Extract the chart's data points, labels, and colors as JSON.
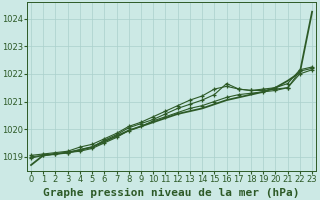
{
  "title": "Graphe pression niveau de la mer (hPa)",
  "xlabel_hours": [
    0,
    1,
    2,
    3,
    4,
    5,
    6,
    7,
    8,
    9,
    10,
    11,
    12,
    13,
    14,
    15,
    16,
    17,
    18,
    19,
    20,
    21,
    22,
    23
  ],
  "ylim": [
    1018.5,
    1024.6
  ],
  "yticks": [
    1019,
    1020,
    1021,
    1022,
    1023,
    1024
  ],
  "background_color": "#cce9e5",
  "grid_color": "#aad0cc",
  "line_color": "#2d5a27",
  "series_smooth": [
    1018.7,
    1019.05,
    1019.1,
    1019.15,
    1019.25,
    1019.35,
    1019.55,
    1019.75,
    1019.95,
    1020.1,
    1020.25,
    1020.4,
    1020.55,
    1020.65,
    1020.75,
    1020.9,
    1021.05,
    1021.15,
    1021.25,
    1021.35,
    1021.5,
    1021.75,
    1022.05,
    1024.25
  ],
  "series2": [
    1019.05,
    1019.1,
    1019.15,
    1019.2,
    1019.35,
    1019.45,
    1019.65,
    1019.85,
    1020.1,
    1020.25,
    1020.45,
    1020.65,
    1020.85,
    1021.05,
    1021.2,
    1021.45,
    1021.55,
    1021.45,
    1021.4,
    1021.45,
    1021.5,
    1021.65,
    1022.15,
    1022.25
  ],
  "series3": [
    1019.0,
    1019.05,
    1019.1,
    1019.15,
    1019.25,
    1019.35,
    1019.6,
    1019.8,
    1020.05,
    1020.2,
    1020.35,
    1020.55,
    1020.75,
    1020.9,
    1021.05,
    1021.25,
    1021.65,
    1021.45,
    1021.4,
    1021.4,
    1021.45,
    1021.5,
    1022.1,
    1022.2
  ],
  "series4": [
    1018.95,
    1019.05,
    1019.1,
    1019.15,
    1019.2,
    1019.3,
    1019.5,
    1019.7,
    1019.95,
    1020.1,
    1020.3,
    1020.45,
    1020.6,
    1020.75,
    1020.85,
    1021.0,
    1021.15,
    1021.25,
    1021.3,
    1021.35,
    1021.4,
    1021.5,
    1022.0,
    1022.15
  ],
  "title_fontsize": 8,
  "tick_fontsize": 6
}
